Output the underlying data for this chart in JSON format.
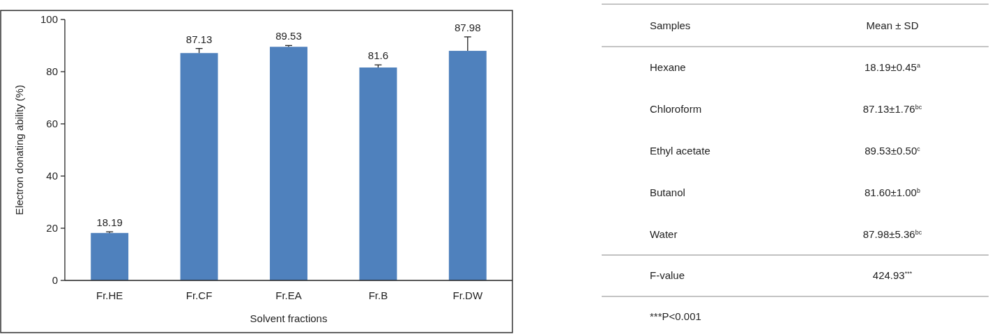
{
  "chart_data": [
    {
      "type": "bar",
      "categories": [
        "Fr.HE",
        "Fr.CF",
        "Fr.EA",
        "Fr.B",
        "Fr.DW"
      ],
      "values": [
        18.19,
        87.13,
        89.53,
        81.6,
        87.98
      ],
      "errors": [
        0.45,
        1.76,
        0.5,
        1.0,
        5.36
      ],
      "color": "#4f81bd",
      "xlabel": "Solvent fractions",
      "ylabel": "Electron donating ability (%)",
      "ylim": [
        0,
        100
      ],
      "yticks": [
        0,
        20,
        40,
        60,
        80,
        100
      ],
      "data_labels": true
    },
    {
      "type": "other",
      "annotations": [
        "Samples",
        "Mean ± SD",
        "Hexane",
        "18.19±0.45$^{a}$",
        "Chloroform",
        "87.13±1.76$^{bc}$",
        "Ethyl acetate",
        "89.53±0.50$^{c}$",
        "Butanol",
        "81.60±1.00$^{b}$",
        "Water",
        "87.98±5.36$^{bc}$",
        "F-value",
        "424.93$^{***}$",
        "***P<0.001"
      ]
    }
  ]
}
